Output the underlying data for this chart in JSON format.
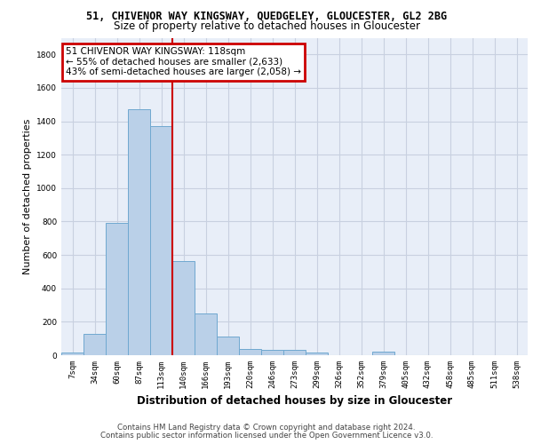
{
  "title_line1": "51, CHIVENOR WAY KINGSWAY, QUEDGELEY, GLOUCESTER, GL2 2BG",
  "title_line2": "Size of property relative to detached houses in Gloucester",
  "xlabel": "Distribution of detached houses by size in Gloucester",
  "ylabel": "Number of detached properties",
  "footer_line1": "Contains HM Land Registry data © Crown copyright and database right 2024.",
  "footer_line2": "Contains public sector information licensed under the Open Government Licence v3.0.",
  "bin_labels": [
    "7sqm",
    "34sqm",
    "60sqm",
    "87sqm",
    "113sqm",
    "140sqm",
    "166sqm",
    "193sqm",
    "220sqm",
    "246sqm",
    "273sqm",
    "299sqm",
    "326sqm",
    "352sqm",
    "379sqm",
    "405sqm",
    "432sqm",
    "458sqm",
    "485sqm",
    "511sqm",
    "538sqm"
  ],
  "bar_values": [
    15,
    130,
    790,
    1470,
    1370,
    565,
    250,
    110,
    35,
    30,
    30,
    18,
    0,
    0,
    20,
    0,
    0,
    0,
    0,
    0,
    0
  ],
  "bar_color": "#bad0e8",
  "bar_edge_color": "#6fa8d0",
  "annotation_title": "51 CHIVENOR WAY KINGSWAY: 118sqm",
  "annotation_line2": "← 55% of detached houses are smaller (2,633)",
  "annotation_line3": "43% of semi-detached houses are larger (2,058) →",
  "annotation_box_color": "#cc0000",
  "vline_color": "#cc0000",
  "vline_x": 4.5,
  "ylim": [
    0,
    1900
  ],
  "yticks": [
    0,
    200,
    400,
    600,
    800,
    1000,
    1200,
    1400,
    1600,
    1800
  ],
  "background_color": "#e8eef8",
  "grid_color": "#c8d0e0",
  "title1_fontsize": 8.5,
  "title2_fontsize": 8.5,
  "ylabel_fontsize": 8,
  "xlabel_fontsize": 8.5,
  "tick_fontsize": 6.5,
  "ann_fontsize": 7.5,
  "footer_fontsize": 6.2
}
